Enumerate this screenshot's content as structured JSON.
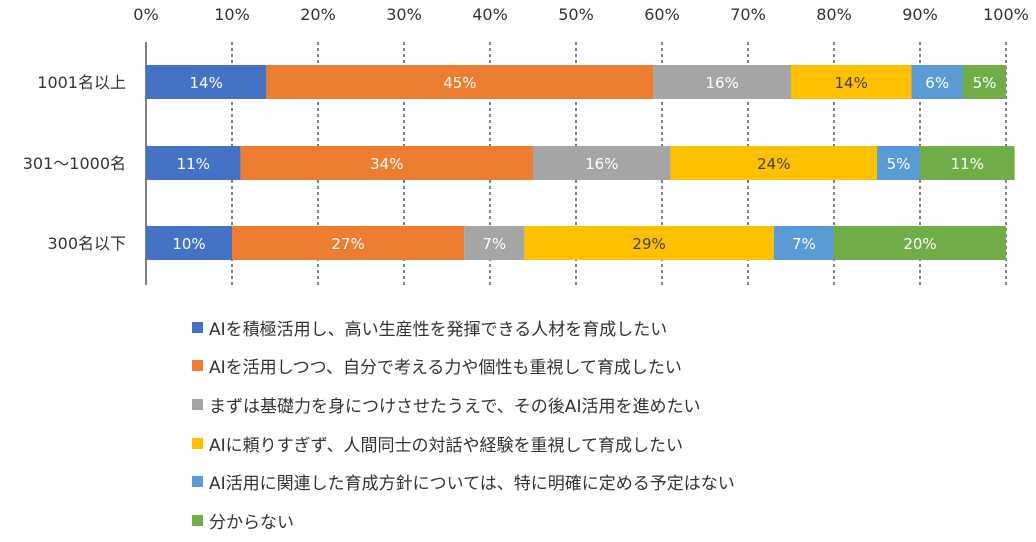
{
  "chart_data": {
    "type": "bar",
    "orientation": "horizontal",
    "stacked": true,
    "title": "",
    "xlabel": "",
    "ylabel": "",
    "xlim": [
      0,
      100
    ],
    "x_ticks": [
      "0%",
      "10%",
      "20%",
      "30%",
      "40%",
      "50%",
      "60%",
      "70%",
      "80%",
      "90%",
      "100%"
    ],
    "gridlines": "vertical dashed",
    "legend_position": "bottom",
    "categories": [
      "1001名以上",
      "301〜1000名",
      "300名以下"
    ],
    "series": [
      {
        "name": "AIを積極活用し、高い生産性を発揮できる人材を育成したい",
        "color": "#4472C4",
        "label_color": "#ffffff",
        "values": [
          14,
          11,
          10
        ]
      },
      {
        "name": "AIを活用しつつ、自分で考える力や個性も重視して育成したい",
        "color": "#ED7D31",
        "label_color": "#ffffff",
        "values": [
          45,
          34,
          27
        ]
      },
      {
        "name": "まずは基礎力を身につけさせたうえで、その後AI活用を進めたい",
        "color": "#A5A5A5",
        "label_color": "#ffffff",
        "values": [
          16,
          16,
          7
        ]
      },
      {
        "name": "AIに頼りすぎず、人間同士の対話や経験を重視して育成したい",
        "color": "#FFC000",
        "label_color": "#404040",
        "values": [
          14,
          24,
          29
        ]
      },
      {
        "name": "AI活用に関連した育成方針については、特に明確に定める予定はない",
        "color": "#5B9BD5",
        "label_color": "#ffffff",
        "values": [
          6,
          5,
          7
        ]
      },
      {
        "name": "分からない",
        "color": "#70AD47",
        "label_color": "#ffffff",
        "values": [
          5,
          11,
          20
        ]
      }
    ]
  }
}
